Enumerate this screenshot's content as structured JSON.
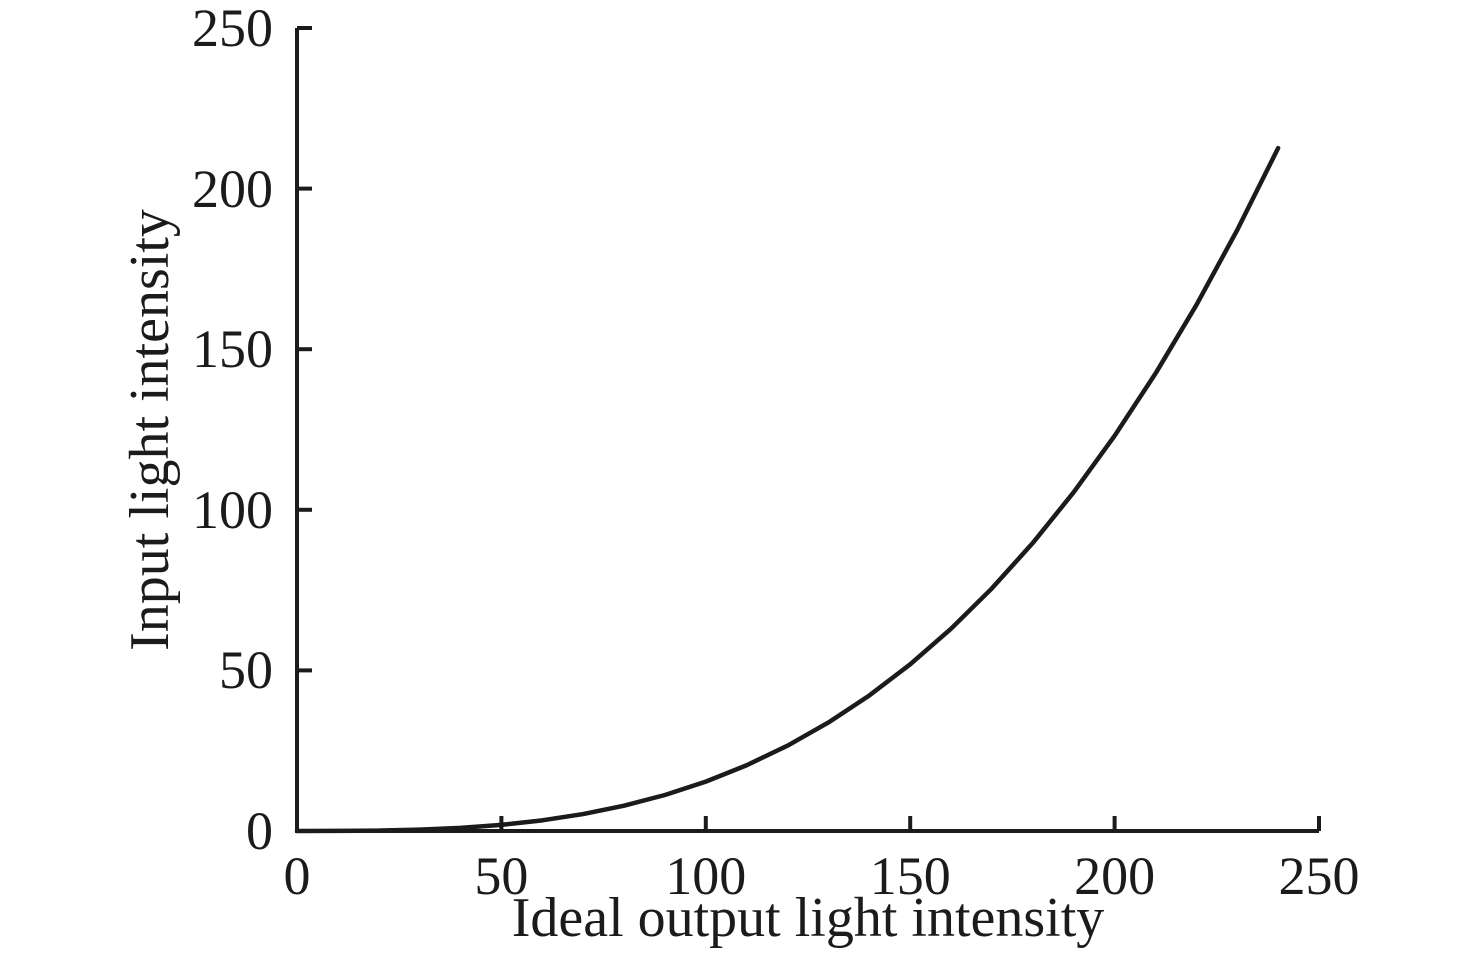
{
  "figure": {
    "background": "#ffffff",
    "text_color": "#1b1b1b",
    "axis_color": "#1b1b1b"
  },
  "chart_data": {
    "type": "line",
    "title": "",
    "xlabel": "Ideal output light intensity",
    "ylabel": "Input light intensity",
    "xlim": [
      0,
      250
    ],
    "ylim": [
      0,
      250
    ],
    "xticks": [
      0,
      50,
      100,
      150,
      200,
      250
    ],
    "yticks": [
      0,
      50,
      100,
      150,
      200,
      250
    ],
    "grid": false,
    "legend_position": "none",
    "series": [
      {
        "name": "curve",
        "color": "#1b1b1b",
        "x": [
          0,
          10,
          20,
          30,
          40,
          50,
          60,
          70,
          80,
          90,
          100,
          110,
          120,
          130,
          140,
          150,
          160,
          170,
          180,
          190,
          200,
          210,
          220,
          230,
          240
        ],
        "y": [
          0,
          0.02,
          0.12,
          0.42,
          0.98,
          1.92,
          3.32,
          5.27,
          7.87,
          11.21,
          15.38,
          20.47,
          26.57,
          33.79,
          42.2,
          51.9,
          62.99,
          75.56,
          89.69,
          105.48,
          123.03,
          142.42,
          163.75,
          187.11,
          212.6
        ]
      }
    ]
  }
}
